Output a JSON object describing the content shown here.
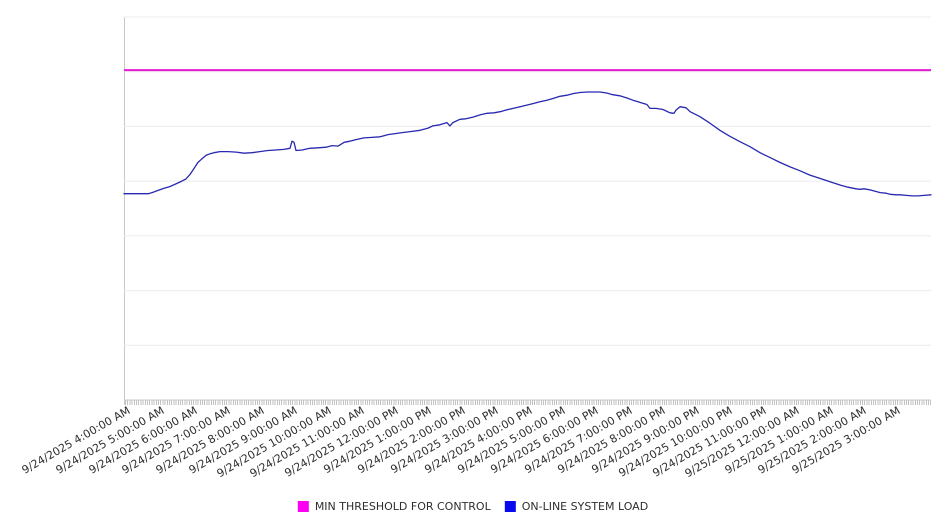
{
  "chart_data": {
    "type": "line",
    "title": "",
    "background_color": "#ffffff",
    "gridlines": true,
    "gridline_color": "#ececec",
    "axis_line_color": "#c8c8c8",
    "x_axis": {
      "hour_min": 4,
      "hour_max": 28.12,
      "tick_interval_hours": 1,
      "tick_labels": [
        "9/24/2025 4:00:00 AM",
        "9/24/2025 5:00:00 AM",
        "9/24/2025 6:00:00 AM",
        "9/24/2025 7:00:00 AM",
        "9/24/2025 8:00:00 AM",
        "9/24/2025 9:00:00 AM",
        "9/24/2025 10:00:00 AM",
        "9/24/2025 11:00:00 AM",
        "9/24/2025 12:00:00 PM",
        "9/24/2025 1:00:00 PM",
        "9/24/2025 2:00:00 PM",
        "9/24/2025 3:00:00 PM",
        "9/24/2025 4:00:00 PM",
        "9/24/2025 5:00:00 PM",
        "9/24/2025 6:00:00 PM",
        "9/24/2025 7:00:00 PM",
        "9/24/2025 8:00:00 PM",
        "9/24/2025 9:00:00 PM",
        "9/24/2025 10:00:00 PM",
        "9/24/2025 11:00:00 PM",
        "9/25/2025 12:00:00 AM",
        "9/25/2025 1:00:00 AM",
        "9/25/2025 2:00:00 AM",
        "9/25/2025 3:00:00 AM"
      ]
    },
    "y_axis": {
      "min": 0,
      "max": 70,
      "gridline_step": 10,
      "tick_labels_visible": false
    },
    "legend": [
      {
        "label": "MIN THRESHOLD FOR CONTROL",
        "color": "#fb00f3"
      },
      {
        "label": "ON-LINE SYSTEM LOAD",
        "color": "#0a0aee"
      }
    ],
    "series": [
      {
        "name": "MIN THRESHOLD FOR CONTROL",
        "type": "threshold",
        "value": 60.3,
        "color": "#e619d6",
        "stroke_width": 2
      },
      {
        "name": "ON-LINE SYSTEM LOAD",
        "type": "line",
        "color": "#2828b0",
        "stroke_width": 1.3,
        "points": [
          [
            4.0,
            37.7
          ],
          [
            4.24,
            37.7
          ],
          [
            4.48,
            37.7
          ],
          [
            4.72,
            37.7
          ],
          [
            4.84,
            37.9
          ],
          [
            5.02,
            38.3
          ],
          [
            5.2,
            38.7
          ],
          [
            5.37,
            39.0
          ],
          [
            5.55,
            39.5
          ],
          [
            5.73,
            40.0
          ],
          [
            5.85,
            40.4
          ],
          [
            5.97,
            41.2
          ],
          [
            6.09,
            42.3
          ],
          [
            6.21,
            43.4
          ],
          [
            6.33,
            44.1
          ],
          [
            6.45,
            44.7
          ],
          [
            6.57,
            45.0
          ],
          [
            6.69,
            45.2
          ],
          [
            6.87,
            45.4
          ],
          [
            7.11,
            45.4
          ],
          [
            7.35,
            45.3
          ],
          [
            7.59,
            45.1
          ],
          [
            7.83,
            45.2
          ],
          [
            8.06,
            45.4
          ],
          [
            8.3,
            45.6
          ],
          [
            8.54,
            45.7
          ],
          [
            8.78,
            45.8
          ],
          [
            8.96,
            46.0
          ],
          [
            9.02,
            47.3
          ],
          [
            9.08,
            47.1
          ],
          [
            9.14,
            45.6
          ],
          [
            9.32,
            45.7
          ],
          [
            9.56,
            46.0
          ],
          [
            9.8,
            46.1
          ],
          [
            10.04,
            46.2
          ],
          [
            10.22,
            46.5
          ],
          [
            10.4,
            46.4
          ],
          [
            10.58,
            47.1
          ],
          [
            10.75,
            47.3
          ],
          [
            10.93,
            47.6
          ],
          [
            11.17,
            47.9
          ],
          [
            11.41,
            48.0
          ],
          [
            11.65,
            48.1
          ],
          [
            11.89,
            48.5
          ],
          [
            12.13,
            48.7
          ],
          [
            12.37,
            48.9
          ],
          [
            12.61,
            49.1
          ],
          [
            12.85,
            49.3
          ],
          [
            13.09,
            49.7
          ],
          [
            13.23,
            50.1
          ],
          [
            13.44,
            50.3
          ],
          [
            13.65,
            50.7
          ],
          [
            13.74,
            50.1
          ],
          [
            13.83,
            50.7
          ],
          [
            14.04,
            51.3
          ],
          [
            14.22,
            51.4
          ],
          [
            14.43,
            51.7
          ],
          [
            14.64,
            52.1
          ],
          [
            14.85,
            52.4
          ],
          [
            15.06,
            52.5
          ],
          [
            15.24,
            52.7
          ],
          [
            15.42,
            53.0
          ],
          [
            15.63,
            53.3
          ],
          [
            15.84,
            53.6
          ],
          [
            16.04,
            53.9
          ],
          [
            16.25,
            54.2
          ],
          [
            16.43,
            54.5
          ],
          [
            16.64,
            54.8
          ],
          [
            16.82,
            55.1
          ],
          [
            17.03,
            55.5
          ],
          [
            17.24,
            55.7
          ],
          [
            17.42,
            56.0
          ],
          [
            17.63,
            56.2
          ],
          [
            17.84,
            56.3
          ],
          [
            18.02,
            56.3
          ],
          [
            18.23,
            56.3
          ],
          [
            18.44,
            56.1
          ],
          [
            18.61,
            55.8
          ],
          [
            18.82,
            55.6
          ],
          [
            19.03,
            55.2
          ],
          [
            19.21,
            54.8
          ],
          [
            19.42,
            54.4
          ],
          [
            19.63,
            54.0
          ],
          [
            19.72,
            53.3
          ],
          [
            19.9,
            53.3
          ],
          [
            20.11,
            53.1
          ],
          [
            20.32,
            52.5
          ],
          [
            20.44,
            52.4
          ],
          [
            20.5,
            53.0
          ],
          [
            20.62,
            53.6
          ],
          [
            20.8,
            53.4
          ],
          [
            20.92,
            52.7
          ],
          [
            21.21,
            51.8
          ],
          [
            21.51,
            50.6
          ],
          [
            21.81,
            49.3
          ],
          [
            22.11,
            48.2
          ],
          [
            22.41,
            47.2
          ],
          [
            22.71,
            46.3
          ],
          [
            23.01,
            45.2
          ],
          [
            23.31,
            44.3
          ],
          [
            23.61,
            43.4
          ],
          [
            23.91,
            42.6
          ],
          [
            24.2,
            41.9
          ],
          [
            24.5,
            41.1
          ],
          [
            24.8,
            40.5
          ],
          [
            25.1,
            39.9
          ],
          [
            25.4,
            39.3
          ],
          [
            25.64,
            38.9
          ],
          [
            25.88,
            38.6
          ],
          [
            26.0,
            38.5
          ],
          [
            26.12,
            38.6
          ],
          [
            26.3,
            38.4
          ],
          [
            26.48,
            38.1
          ],
          [
            26.6,
            37.9
          ],
          [
            26.78,
            37.8
          ],
          [
            26.9,
            37.6
          ],
          [
            27.08,
            37.5
          ],
          [
            27.2,
            37.5
          ],
          [
            27.38,
            37.4
          ],
          [
            27.55,
            37.3
          ],
          [
            27.73,
            37.3
          ],
          [
            27.91,
            37.4
          ],
          [
            28.12,
            37.5
          ]
        ]
      }
    ]
  }
}
